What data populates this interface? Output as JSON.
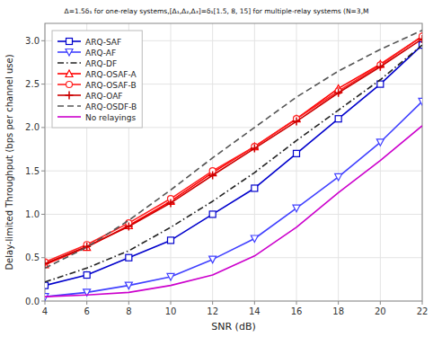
{
  "chart_data": {
    "type": "line",
    "title": "Δ=1.5δ₁ for one-relay systems,[Δ₁,Δ₂,Δ₃]=δ₁[1.5, 8, 15] for multiple-relay systems (N=3,M",
    "xlabel": "SNR (dB)",
    "ylabel": "Delay-limited Throughput (bps per channel use)",
    "x": [
      4,
      6,
      8,
      10,
      12,
      14,
      16,
      18,
      20,
      22
    ],
    "series": [
      {
        "name": "ARQ-SAF",
        "color": "#0000CC",
        "marker": "square",
        "line_style": "solid",
        "values": [
          0.18,
          0.3,
          0.5,
          0.7,
          1.0,
          1.3,
          1.7,
          2.1,
          2.5,
          2.95
        ]
      },
      {
        "name": "ARQ-AF",
        "color": "#4040FF",
        "marker": "triangle-down",
        "line_style": "solid",
        "values": [
          0.05,
          0.1,
          0.18,
          0.28,
          0.48,
          0.72,
          1.07,
          1.43,
          1.83,
          2.3
        ]
      },
      {
        "name": "ARQ-DF",
        "color": "#222222",
        "marker": "none",
        "line_style": "dash-dot",
        "values": [
          0.22,
          0.38,
          0.58,
          0.85,
          1.15,
          1.48,
          1.85,
          2.2,
          2.55,
          2.95
        ]
      },
      {
        "name": "ARQ-OSAF-A",
        "color": "#FF0000",
        "marker": "triangle-up",
        "line_style": "solid",
        "values": [
          0.42,
          0.62,
          0.87,
          1.15,
          1.48,
          1.78,
          2.1,
          2.45,
          2.73,
          3.05
        ]
      },
      {
        "name": "ARQ-OSAF-B",
        "color": "#FF2020",
        "marker": "circle",
        "line_style": "solid",
        "values": [
          0.45,
          0.65,
          0.9,
          1.18,
          1.5,
          1.78,
          2.1,
          2.42,
          2.72,
          3.05
        ]
      },
      {
        "name": "ARQ-OAF",
        "color": "#CC0000",
        "marker": "plus",
        "line_style": "solid",
        "values": [
          0.43,
          0.63,
          0.86,
          1.13,
          1.45,
          1.76,
          2.07,
          2.4,
          2.7,
          3.02
        ]
      },
      {
        "name": "ARQ-OSDF-B",
        "color": "#555555",
        "marker": "none",
        "line_style": "dashed",
        "values": [
          0.38,
          0.62,
          0.93,
          1.28,
          1.65,
          2.0,
          2.35,
          2.65,
          2.9,
          3.12
        ]
      },
      {
        "name": "No relayings",
        "color": "#CC00CC",
        "marker": "none",
        "line_style": "solid",
        "values": [
          0.05,
          0.07,
          0.1,
          0.18,
          0.3,
          0.52,
          0.85,
          1.25,
          1.62,
          2.02
        ]
      }
    ],
    "xlim": [
      4,
      22
    ],
    "ylim": [
      0,
      3.2
    ],
    "xticks": [
      4,
      6,
      8,
      10,
      12,
      14,
      16,
      18,
      20,
      22
    ],
    "yticks": [
      {
        "value": 0,
        "label": "0.0"
      },
      0.5,
      {
        "value": 1.0,
        "label": "1.0"
      },
      1.5,
      {
        "value": 2.0,
        "label": "2.0"
      },
      2.5,
      {
        "value": 3.0,
        "label": "3.0"
      }
    ],
    "grid": true,
    "legend": "upper left"
  }
}
